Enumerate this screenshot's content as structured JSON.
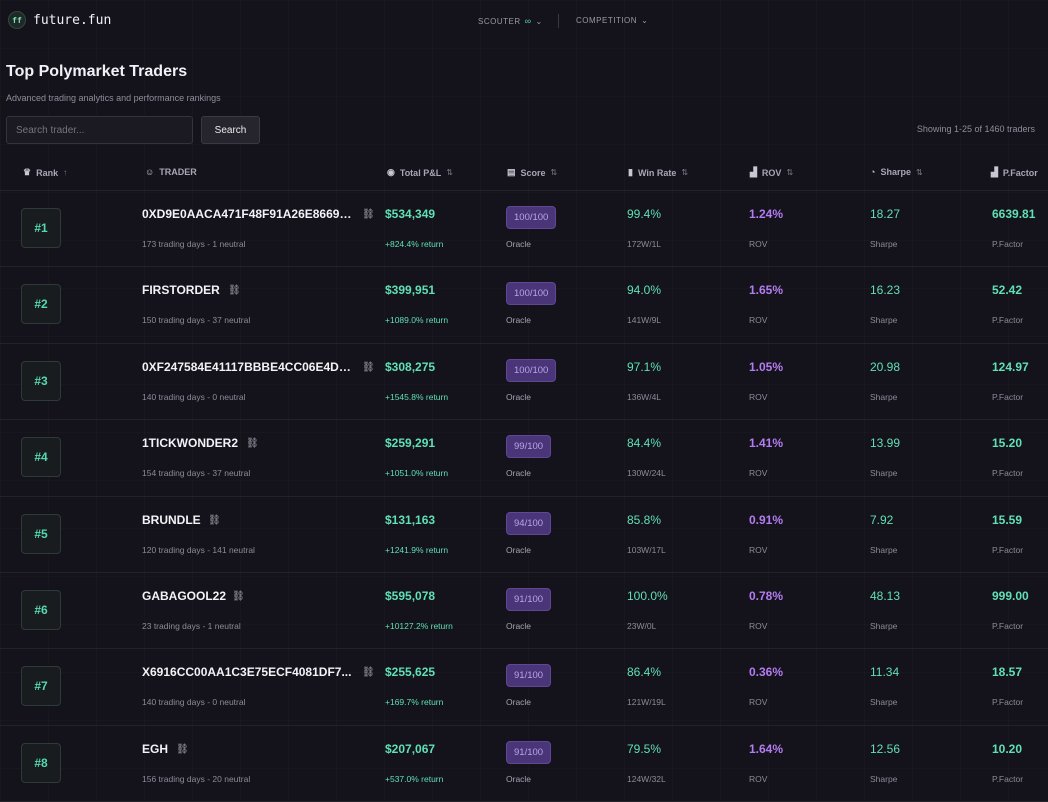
{
  "app": {
    "logo_badge": "ff",
    "logo_text": "future.fun"
  },
  "nav": {
    "scouter_label": "SCOUTER",
    "scouter_suffix": "∞",
    "competition_label": "COMPETITION"
  },
  "page": {
    "title": "Top Polymarket Traders",
    "subtitle": "Advanced trading analytics and performance rankings"
  },
  "search": {
    "placeholder": "Search trader...",
    "value": "",
    "button_label": "Search",
    "showing_text": "Showing 1-25 of 1460 traders"
  },
  "columns": {
    "rank": "Rank",
    "trader": "TRADER",
    "pnl": "Total P&L",
    "score": "Score",
    "winrate": "Win Rate",
    "rov": "ROV",
    "sharpe": "Sharpe",
    "pfactor": "P.Factor"
  },
  "icons": {
    "rank": "crown-icon",
    "trader": "user-icon",
    "pnl": "coin-icon",
    "score": "score-card-icon",
    "winrate": "trophy-icon",
    "rov": "bar-chart-icon",
    "sharpe": "pie-chart-icon",
    "pfactor": "bar-chart-icon",
    "row_link": "link-icon"
  },
  "colors": {
    "accent_green": "#5fe0b6",
    "accent_purple": "#b47cf2",
    "score_badge": "#4a3578",
    "background": "#14121a"
  },
  "traders": [
    {
      "rank": "#1",
      "name": "0XD9E0AACA471F48F91A26E8669A...",
      "sub": "173 trading days - 1 neutral",
      "pnl": "$534,349",
      "ret": "+824.4% return",
      "score": "100/100",
      "score_sub": "Oracle",
      "win": "99.4%",
      "wl": "172W/1L",
      "rov": "1.24%",
      "rov_sub": "ROV",
      "sharpe": "18.27",
      "sharpe_sub": "Sharpe",
      "pf": "6639.81",
      "pf_sub": "P.Factor"
    },
    {
      "rank": "#2",
      "name": "FIRSTORDER",
      "sub": "150 trading days - 37 neutral",
      "pnl": "$399,951",
      "ret": "+1089.0% return",
      "score": "100/100",
      "score_sub": "Oracle",
      "win": "94.0%",
      "wl": "141W/9L",
      "rov": "1.65%",
      "rov_sub": "ROV",
      "sharpe": "16.23",
      "sharpe_sub": "Sharpe",
      "pf": "52.42",
      "pf_sub": "P.Factor"
    },
    {
      "rank": "#3",
      "name": "0XF247584E41117BBBE4CC06E4D2...",
      "sub": "140 trading days - 0 neutral",
      "pnl": "$308,275",
      "ret": "+1545.8% return",
      "score": "100/100",
      "score_sub": "Oracle",
      "win": "97.1%",
      "wl": "136W/4L",
      "rov": "1.05%",
      "rov_sub": "ROV",
      "sharpe": "20.98",
      "sharpe_sub": "Sharpe",
      "pf": "124.97",
      "pf_sub": "P.Factor"
    },
    {
      "rank": "#4",
      "name": "1TICKWONDER2",
      "sub": "154 trading days - 37 neutral",
      "pnl": "$259,291",
      "ret": "+1051.0% return",
      "score": "99/100",
      "score_sub": "Oracle",
      "win": "84.4%",
      "wl": "130W/24L",
      "rov": "1.41%",
      "rov_sub": "ROV",
      "sharpe": "13.99",
      "sharpe_sub": "Sharpe",
      "pf": "15.20",
      "pf_sub": "P.Factor"
    },
    {
      "rank": "#5",
      "name": "BRUNDLE",
      "sub": "120 trading days - 141 neutral",
      "pnl": "$131,163",
      "ret": "+1241.9% return",
      "score": "94/100",
      "score_sub": "Oracle",
      "win": "85.8%",
      "wl": "103W/17L",
      "rov": "0.91%",
      "rov_sub": "ROV",
      "sharpe": "7.92",
      "sharpe_sub": "Sharpe",
      "pf": "15.59",
      "pf_sub": "P.Factor"
    },
    {
      "rank": "#6",
      "name": "GABAGOOL22",
      "sub": "23 trading days - 1 neutral",
      "pnl": "$595,078",
      "ret": "+10127.2% return",
      "score": "91/100",
      "score_sub": "Oracle",
      "win": "100.0%",
      "wl": "23W/0L",
      "rov": "0.78%",
      "rov_sub": "ROV",
      "sharpe": "48.13",
      "sharpe_sub": "Sharpe",
      "pf": "999.00",
      "pf_sub": "P.Factor"
    },
    {
      "rank": "#7",
      "name": "X6916CC00AA1C3E75ECF4081DF7...",
      "sub": "140 trading days - 0 neutral",
      "pnl": "$255,625",
      "ret": "+169.7% return",
      "score": "91/100",
      "score_sub": "Oracle",
      "win": "86.4%",
      "wl": "121W/19L",
      "rov": "0.36%",
      "rov_sub": "ROV",
      "sharpe": "11.34",
      "sharpe_sub": "Sharpe",
      "pf": "18.57",
      "pf_sub": "P.Factor"
    },
    {
      "rank": "#8",
      "name": "EGH",
      "sub": "156 trading days - 20 neutral",
      "pnl": "$207,067",
      "ret": "+537.0% return",
      "score": "91/100",
      "score_sub": "Oracle",
      "win": "79.5%",
      "wl": "124W/32L",
      "rov": "1.64%",
      "rov_sub": "ROV",
      "sharpe": "12.56",
      "sharpe_sub": "Sharpe",
      "pf": "10.20",
      "pf_sub": "P.Factor"
    }
  ]
}
